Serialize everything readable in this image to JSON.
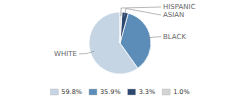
{
  "chart_data": {
    "type": "pie",
    "categories": [
      "WHITE",
      "BLACK",
      "ASIAN",
      "HISPANIC"
    ],
    "values": [
      59.8,
      35.9,
      3.3,
      1.0
    ],
    "value_labels": [
      "59.8%",
      "35.9%",
      "3.3%",
      "1.0%"
    ],
    "colors": [
      "#c5d5e4",
      "#5b8db8",
      "#2c4770",
      "#d3d3d3"
    ],
    "legend": "bottom"
  }
}
